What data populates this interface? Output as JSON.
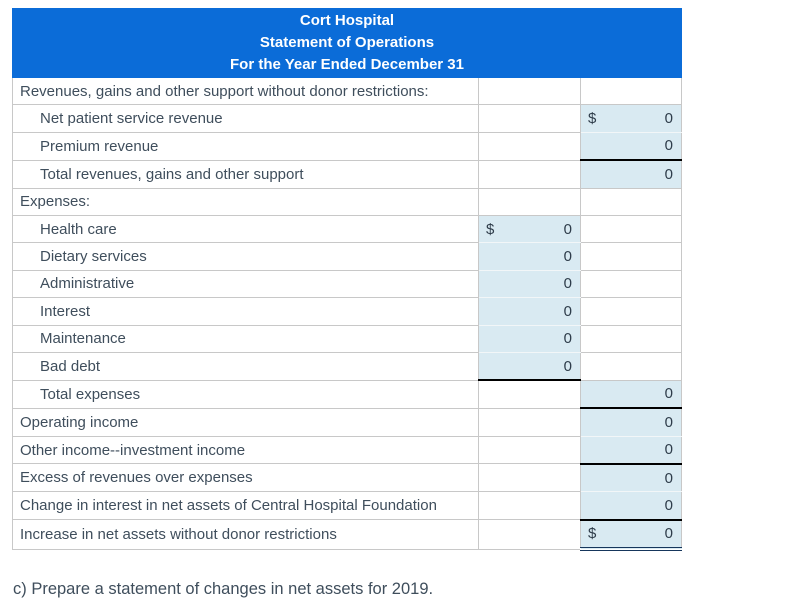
{
  "colors": {
    "banner_bg": "#0b6cd8",
    "banner_text": "#ffffff",
    "input_cell_bg": "#d9eaf2",
    "gridline": "#c8c8c8",
    "label_text": "#3f4e5c",
    "single_rule": "#000000",
    "double_rule": "#16365c"
  },
  "header": {
    "line1": "Cort Hospital",
    "line2": "Statement of Operations",
    "line3": "For the Year Ended December 31"
  },
  "rows": [
    {
      "label": "Revenues, gains and other support without donor restrictions:",
      "indent": 0,
      "mid": null,
      "right": null
    },
    {
      "label": "Net patient service revenue",
      "indent": 1,
      "mid": null,
      "right": {
        "dollar": "$",
        "value": "0"
      }
    },
    {
      "label": "Premium revenue",
      "indent": 1,
      "mid": null,
      "right": {
        "value": "0",
        "underline": "single"
      }
    },
    {
      "label": "Total revenues, gains and other support",
      "indent": 1,
      "mid": null,
      "right": {
        "value": "0"
      }
    },
    {
      "label": "Expenses:",
      "indent": 0,
      "mid": null,
      "right": null
    },
    {
      "label": "Health care",
      "indent": 1,
      "mid": {
        "dollar": "$",
        "value": "0"
      },
      "right": null
    },
    {
      "label": "Dietary services",
      "indent": 1,
      "mid": {
        "value": "0"
      },
      "right": null
    },
    {
      "label": "Administrative",
      "indent": 1,
      "mid": {
        "value": "0"
      },
      "right": null
    },
    {
      "label": "Interest",
      "indent": 1,
      "mid": {
        "value": "0"
      },
      "right": null
    },
    {
      "label": "Maintenance",
      "indent": 1,
      "mid": {
        "value": "0"
      },
      "right": null
    },
    {
      "label": "Bad debt",
      "indent": 1,
      "mid": {
        "value": "0",
        "underline": "single"
      },
      "right": null
    },
    {
      "label": "Total expenses",
      "indent": 1,
      "mid": null,
      "right": {
        "value": "0",
        "underline": "single"
      }
    },
    {
      "label": "Operating income",
      "indent": 0,
      "mid": null,
      "right": {
        "value": "0"
      }
    },
    {
      "label": "Other income--investment income",
      "indent": 0,
      "mid": null,
      "right": {
        "value": "0",
        "underline": "single"
      }
    },
    {
      "label": "Excess of revenues over expenses",
      "indent": 0,
      "mid": null,
      "right": {
        "value": "0"
      }
    },
    {
      "label": "Change in interest in net assets of Central Hospital Foundation",
      "indent": 0,
      "mid": null,
      "right": {
        "value": "0",
        "underline": "single"
      }
    },
    {
      "label": "Increase in net assets without donor restrictions",
      "indent": 0,
      "mid": null,
      "right": {
        "dollar": "$",
        "value": "0",
        "underline": "double"
      }
    }
  ],
  "footer": {
    "caption": "c) Prepare a statement of changes in net assets for 2019."
  }
}
